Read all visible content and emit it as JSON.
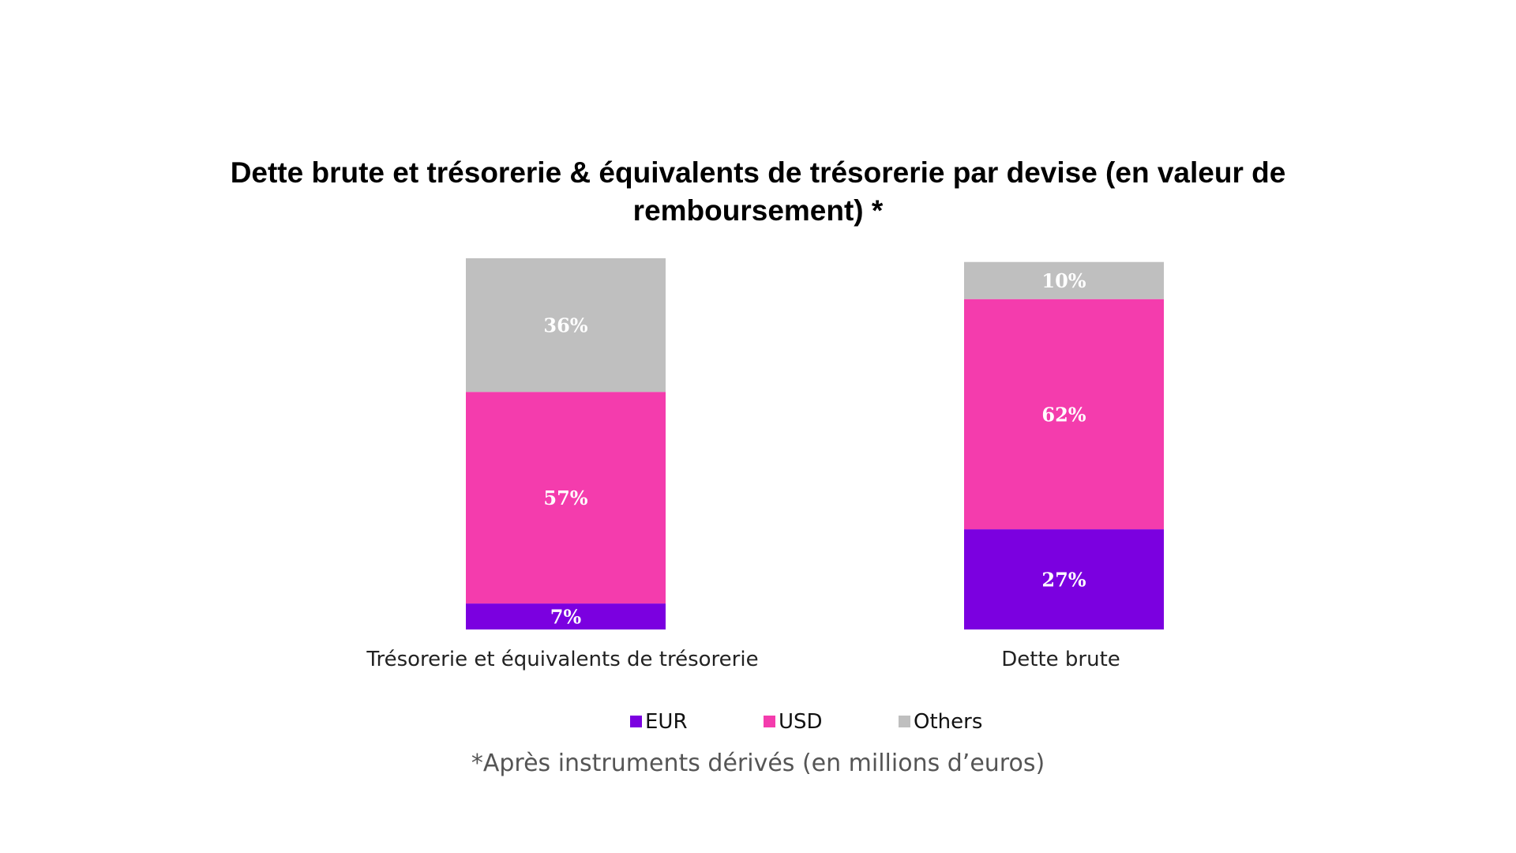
{
  "chart_data": {
    "type": "bar",
    "stacked": true,
    "title": "Dette brute et trésorerie & équivalents de trésorerie par devise (en valeur de remboursement) *",
    "title_lines": [
      "Dette brute et trésorerie & équivalents de trésorerie par devise (en valeur de",
      "remboursement) *"
    ],
    "categories": [
      "Trésorerie et équivalents de trésorerie",
      "Dette brute"
    ],
    "series": [
      {
        "name": "EUR",
        "color": "#7b00e0",
        "values": [
          7,
          27
        ],
        "labels": [
          "7%",
          "27%"
        ]
      },
      {
        "name": "USD",
        "color": "#f43cad",
        "values": [
          57,
          62
        ],
        "labels": [
          "57%",
          "62%"
        ]
      },
      {
        "name": "Others",
        "color": "#bfbfbf",
        "values": [
          36,
          10
        ],
        "labels": [
          "36%",
          "10%"
        ]
      }
    ],
    "unit": "%",
    "ylim": [
      0,
      100
    ],
    "grid": false,
    "legend_position": "bottom",
    "footnote": "*Après instruments dérivés (en millions d’euros)"
  }
}
